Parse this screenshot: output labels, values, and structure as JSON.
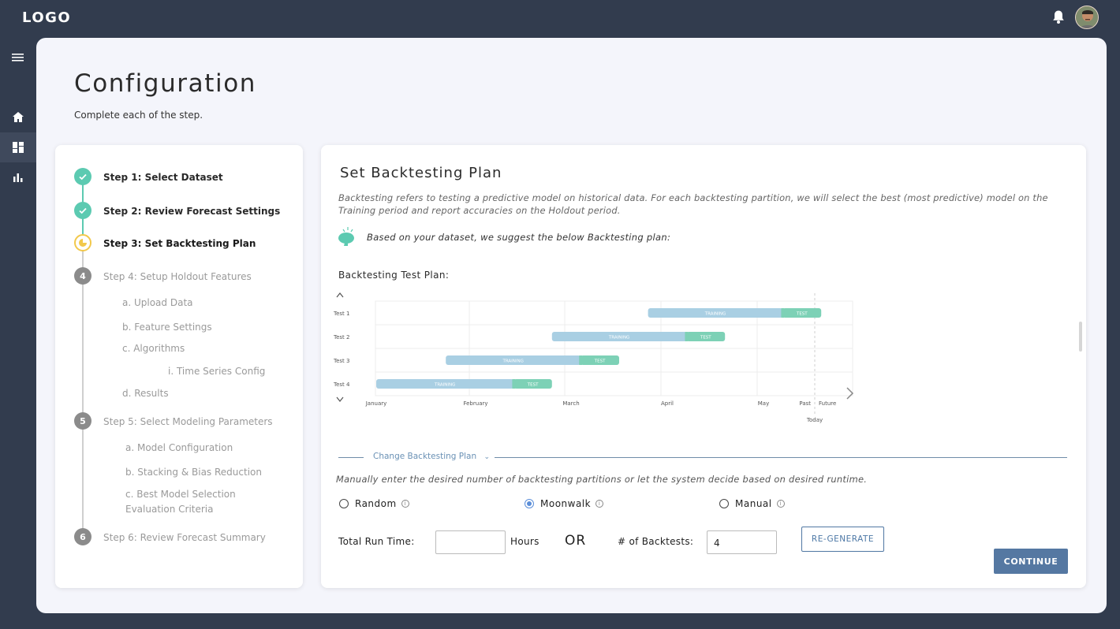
{
  "app": {
    "logo": "LOGO"
  },
  "page": {
    "title": "Configuration",
    "subtitle": "Complete each of the step."
  },
  "steps": [
    {
      "label": "Step 1: Select Dataset",
      "state": "done"
    },
    {
      "label": "Step 2: Review Forecast Settings",
      "state": "done"
    },
    {
      "label": "Step 3: Set Backtesting Plan",
      "state": "current"
    },
    {
      "label": "Step 4: Setup Holdout Features",
      "state": "todo",
      "number": "4"
    },
    {
      "label": "Step 5: Select Modeling Parameters",
      "state": "todo",
      "number": "5"
    },
    {
      "label": "Step 6: Review Forecast Summary",
      "state": "todo",
      "number": "6"
    }
  ],
  "substeps4": [
    "a.  Upload Data",
    "b.  Feature Settings",
    "c.  Algorithms",
    "i. Time Series Config",
    "d. Results"
  ],
  "substeps5": [
    "a.  Model Configuration",
    "b.  Stacking & Bias Reduction",
    "c.  Best Model Selection",
    "Evaluation Criteria"
  ],
  "content": {
    "title": "Set Backtesting Plan",
    "description": "Backtesting refers to testing a predictive model on historical data.  For each backtesting partition, we will select the best (most predictive) model on the Training period and report accuracies on the Holdout period.",
    "suggestion": "Based on your dataset, we suggest the below Backtesting plan:",
    "plan_title": "Backtesting Test Plan:",
    "change_link": "Change Backtesting Plan",
    "manual_desc": "Manually enter the desired number of backtesting partitions or let the system decide based on desired runtime.",
    "options": [
      {
        "label": "Random",
        "selected": false
      },
      {
        "label": "Moonwalk",
        "selected": true
      },
      {
        "label": "Manual",
        "selected": false
      }
    ],
    "run_time_label": "Total Run Time:",
    "run_time_value": "",
    "hours_label": "Hours",
    "or_label": "OR",
    "backtests_label": "# of Backtests:",
    "backtests_value": "4",
    "regenerate_label": "RE-GENERATE",
    "continue_label": "CONTINUE"
  },
  "chart_data": {
    "type": "gantt",
    "months": [
      "January",
      "February",
      "March",
      "April",
      "May"
    ],
    "past_label": "Past",
    "future_label": "Future",
    "today_label": "Today",
    "training_label": "TRAINING",
    "test_label": "TEST",
    "rows": [
      {
        "name": "Test 1",
        "train": [
          2.8,
          4.2
        ],
        "test": [
          4.2,
          4.6
        ]
      },
      {
        "name": "Test 2",
        "train": [
          1.8,
          3.2
        ],
        "test": [
          3.2,
          3.6
        ]
      },
      {
        "name": "Test 3",
        "train": [
          0.7,
          2.1
        ],
        "test": [
          2.1,
          2.5
        ]
      },
      {
        "name": "Test 4",
        "train": [
          0.0,
          1.4
        ],
        "test": [
          1.4,
          1.8
        ]
      }
    ],
    "today": 4.6,
    "colors": {
      "training": "#a9cfe3",
      "test": "#7dd1b6"
    }
  }
}
